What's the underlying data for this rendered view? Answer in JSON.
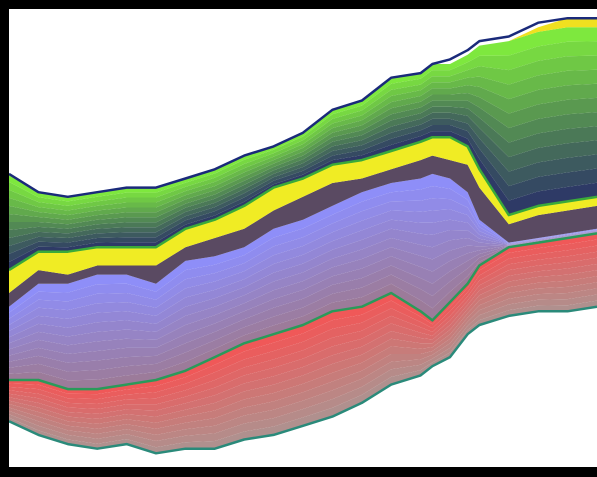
{
  "chart_data": {
    "type": "area",
    "title": "",
    "xlabel": "",
    "ylabel": "",
    "xlim": [
      0,
      100
    ],
    "ylim": [
      0,
      100
    ],
    "grid": false,
    "legend": "none",
    "x": [
      0,
      5,
      10,
      15,
      20,
      25,
      30,
      35,
      40,
      45,
      50,
      55,
      60,
      65,
      70,
      72,
      75,
      78,
      80,
      85,
      90,
      95,
      100
    ],
    "series": [
      {
        "group": "red",
        "color_bottom": "#b0908e",
        "color_top": "#f05858",
        "baseline": [
          10,
          7,
          5,
          4,
          5,
          3,
          4,
          4,
          6,
          7,
          9,
          11,
          14,
          18,
          20,
          22,
          24,
          29,
          31,
          33,
          34,
          34,
          35
        ],
        "top": [
          19,
          19,
          17,
          17,
          18,
          19,
          21,
          24,
          27,
          29,
          31,
          34,
          35,
          38,
          34,
          32,
          36,
          40,
          44,
          48,
          49,
          50,
          51
        ]
      },
      {
        "group": "purple",
        "color_bottom": "#9c7b9a",
        "color_top": "#8e8ef8",
        "baseline": [
          19,
          19,
          17,
          17,
          18,
          19,
          21,
          24,
          27,
          29,
          31,
          34,
          35,
          38,
          34,
          32,
          36,
          40,
          44,
          48,
          49,
          50,
          51
        ],
        "top": [
          35,
          40,
          40,
          42,
          42,
          40,
          45,
          46,
          48,
          52,
          54,
          57,
          60,
          62,
          63,
          64,
          63,
          60,
          54,
          49,
          50,
          51,
          52
        ]
      },
      {
        "group": "dark",
        "color": "#5a4a62",
        "baseline": [
          35,
          40,
          40,
          42,
          42,
          40,
          45,
          46,
          48,
          52,
          54,
          57,
          60,
          62,
          63,
          64,
          63,
          60,
          54,
          49,
          50,
          51,
          52
        ],
        "top": [
          38,
          43,
          42,
          44,
          44,
          44,
          48,
          50,
          52,
          56,
          59,
          62,
          63,
          65,
          67,
          68,
          67,
          66,
          61,
          53,
          55,
          56,
          57
        ]
      },
      {
        "group": "yellow",
        "color": "#f0ec24",
        "baseline": [
          38,
          43,
          42,
          44,
          44,
          44,
          48,
          50,
          52,
          56,
          59,
          62,
          63,
          65,
          67,
          68,
          67,
          66,
          61,
          53,
          55,
          56,
          57
        ],
        "top": [
          43,
          47,
          47,
          48,
          48,
          48,
          52,
          54,
          57,
          61,
          63,
          66,
          67,
          69,
          71,
          72,
          72,
          70,
          65,
          55,
          57,
          58,
          59
        ]
      },
      {
        "group": "blue-green",
        "color_bottom": "#2e3a66",
        "color_top": "#7ee83e",
        "baseline": [
          43,
          47,
          47,
          48,
          48,
          48,
          52,
          54,
          57,
          61,
          63,
          66,
          67,
          69,
          71,
          72,
          72,
          70,
          65,
          55,
          57,
          58,
          59
        ],
        "top": [
          64,
          60,
          59,
          60,
          61,
          61,
          63,
          65,
          68,
          70,
          73,
          78,
          80,
          85,
          86,
          88,
          88,
          90,
          92,
          93,
          95,
          96,
          96
        ]
      },
      {
        "group": "yellow-top",
        "color": "#f0e020",
        "baseline": [
          64,
          60,
          59,
          60,
          61,
          61,
          63,
          65,
          68,
          70,
          73,
          78,
          80,
          85,
          86,
          88,
          88,
          90,
          92,
          93,
          95,
          96,
          96
        ],
        "top": [
          64,
          60,
          59,
          60,
          61,
          61,
          63,
          65,
          68,
          70,
          73,
          78,
          80,
          85,
          86,
          88,
          88,
          90,
          92,
          93,
          96,
          98,
          98
        ]
      }
    ],
    "outlines": [
      {
        "name_ref": "outer-top",
        "color": "#1a2a7a",
        "values": [
          64,
          60,
          59,
          60,
          61,
          61,
          63,
          65,
          68,
          70,
          73,
          78,
          80,
          85,
          86,
          88,
          89,
          91,
          93,
          94,
          97,
          98,
          98
        ]
      },
      {
        "name_ref": "inner-top",
        "color": "#3aaa3a",
        "values": [
          43,
          47,
          47,
          48,
          48,
          48,
          52,
          54,
          57,
          61,
          63,
          66,
          67,
          69,
          71,
          72,
          72,
          70,
          65,
          55,
          57,
          58,
          59
        ]
      },
      {
        "name_ref": "red-top",
        "color": "#2a9a5a",
        "values": [
          19,
          19,
          17,
          17,
          18,
          19,
          21,
          24,
          27,
          29,
          31,
          34,
          35,
          38,
          34,
          32,
          36,
          40,
          44,
          48,
          49,
          50,
          51
        ]
      },
      {
        "name_ref": "bottom",
        "color": "#2a8a7a",
        "values": [
          10,
          7,
          5,
          4,
          5,
          3,
          4,
          4,
          6,
          7,
          9,
          11,
          14,
          18,
          20,
          22,
          24,
          29,
          31,
          33,
          34,
          34,
          35
        ]
      }
    ]
  }
}
